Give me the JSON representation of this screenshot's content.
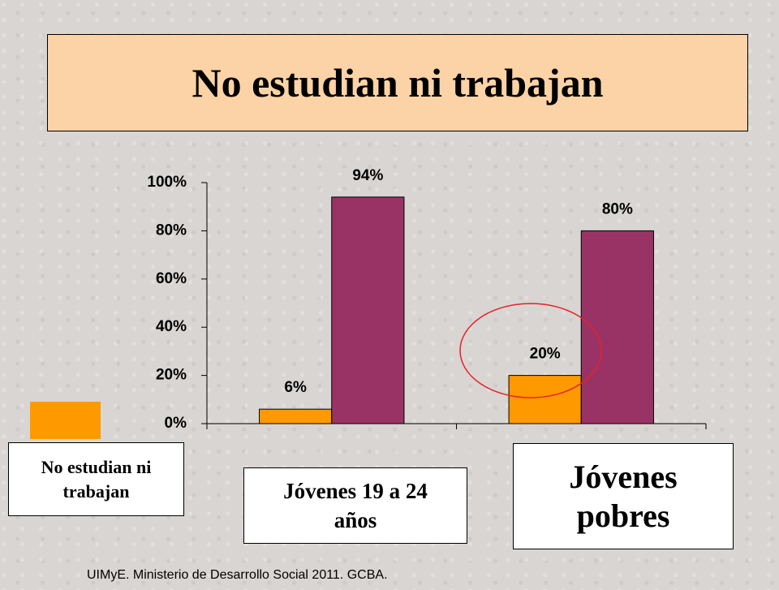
{
  "chart_data": {
    "type": "bar",
    "title": "No estudian ni trabajan",
    "categories": [
      "Jóvenes 19 a 24 años",
      "Jóvenes pobres"
    ],
    "series": [
      {
        "name": "No estudian ni trabajan",
        "color": "#ff9900",
        "values": [
          6,
          20
        ],
        "value_labels": [
          "6%",
          "20%"
        ]
      },
      {
        "color": "#993366",
        "values": [
          94,
          80
        ],
        "value_labels": [
          "94%",
          "80%"
        ]
      }
    ],
    "ylim": [
      0,
      100
    ],
    "yticks": [
      {
        "value": 0,
        "label": "0%"
      },
      {
        "value": 20,
        "label": "20%"
      },
      {
        "value": 40,
        "label": "40%"
      },
      {
        "value": 60,
        "label": "60%"
      },
      {
        "value": 80,
        "label": "80%"
      },
      {
        "value": 100,
        "label": "100%"
      }
    ],
    "source": "UIMyE. Ministerio de Desarrollo Social 2011. GCBA."
  }
}
